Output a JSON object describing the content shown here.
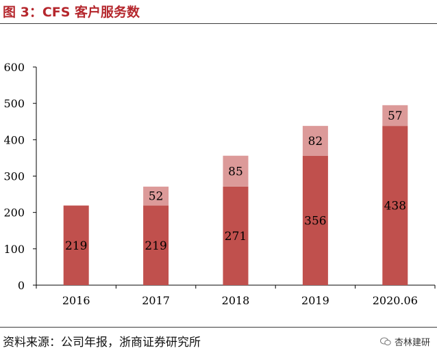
{
  "title": "图 3：CFS 客户服务数",
  "source": "资料来源：公司年报，浙商证券研究所",
  "watermark": "杏林建研",
  "colors": {
    "base": "#c0504d",
    "increment": "#dc9a99",
    "title": "#b5272d",
    "axis": "#000000"
  },
  "chart_data": {
    "type": "bar",
    "stacked": true,
    "categories": [
      "2016",
      "2017",
      "2018",
      "2019",
      "2020.06"
    ],
    "series": [
      {
        "values": [
          219,
          219,
          271,
          356,
          438
        ]
      },
      {
        "values": [
          null,
          52,
          85,
          82,
          57
        ]
      }
    ],
    "ylim": [
      0,
      600
    ],
    "yticks": [
      0,
      100,
      200,
      300,
      400,
      500,
      600
    ],
    "legend": "none",
    "grid": false
  }
}
